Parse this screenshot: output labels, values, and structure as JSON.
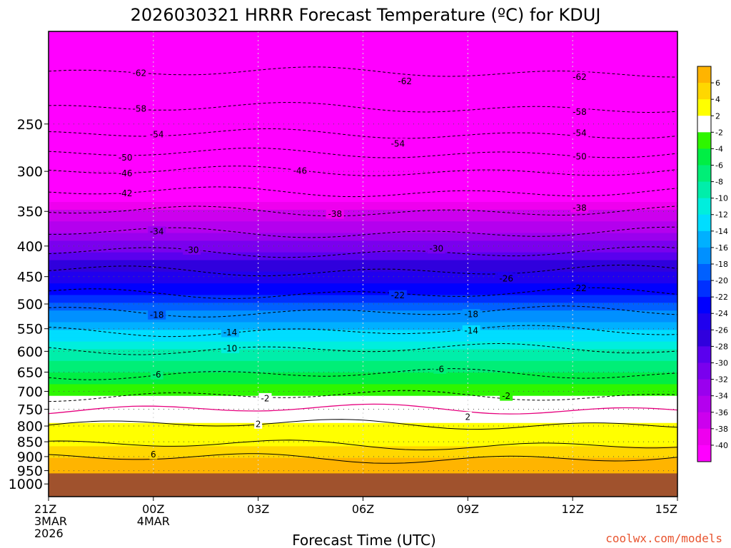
{
  "chart_data": {
    "type": "heatmap",
    "title": "2026030321 HRRR Forecast Temperature (ºC) for KDUJ",
    "xlabel": "Forecast Time (UTC)",
    "ylabel": "",
    "watermark": "coolwx.com/models",
    "x_range_hours": [
      0,
      18
    ],
    "y_range_hpa": [
      175,
      1050
    ],
    "y_scale": "log",
    "x_ticks": [
      {
        "hour": 0,
        "lines": [
          "21Z",
          "3MAR",
          "2026"
        ]
      },
      {
        "hour": 3,
        "lines": [
          "00Z",
          "4MAR"
        ]
      },
      {
        "hour": 6,
        "lines": [
          "03Z"
        ]
      },
      {
        "hour": 9,
        "lines": [
          "06Z"
        ]
      },
      {
        "hour": 12,
        "lines": [
          "09Z"
        ]
      },
      {
        "hour": 15,
        "lines": [
          "12Z"
        ]
      },
      {
        "hour": 18,
        "lines": [
          "15Z"
        ]
      }
    ],
    "y_ticks": [
      {
        "value": 250,
        "label": "250"
      },
      {
        "value": 300,
        "label": "300"
      },
      {
        "value": 350,
        "label": "350"
      },
      {
        "value": 400,
        "label": "400"
      },
      {
        "value": 450,
        "label": "450"
      },
      {
        "value": 500,
        "label": "500"
      },
      {
        "value": 550,
        "label": "550"
      },
      {
        "value": 600,
        "label": "600"
      },
      {
        "value": 650,
        "label": "650"
      },
      {
        "value": 700,
        "label": "700"
      },
      {
        "value": 750,
        "label": "750"
      },
      {
        "value": 800,
        "label": "800"
      },
      {
        "value": 850,
        "label": "850"
      },
      {
        "value": 900,
        "label": "900"
      },
      {
        "value": 950,
        "label": "950"
      },
      {
        "value": 1000,
        "label": "1000"
      }
    ],
    "grid": {
      "vertical_dotted": true,
      "horizontal_dotted": true
    },
    "surface_pressure_hpa": 960,
    "surface_color": "#a0522d",
    "temperature_profile": [
      {
        "hpa": 175,
        "temp": -66
      },
      {
        "hpa": 205,
        "temp": -62
      },
      {
        "hpa": 235,
        "temp": -58
      },
      {
        "hpa": 260,
        "temp": -54
      },
      {
        "hpa": 280,
        "temp": -50
      },
      {
        "hpa": 300,
        "temp": -46
      },
      {
        "hpa": 325,
        "temp": -42
      },
      {
        "hpa": 350,
        "temp": -38
      },
      {
        "hpa": 380,
        "temp": -34
      },
      {
        "hpa": 410,
        "temp": -30
      },
      {
        "hpa": 440,
        "temp": -26
      },
      {
        "hpa": 480,
        "temp": -22
      },
      {
        "hpa": 515,
        "temp": -18
      },
      {
        "hpa": 555,
        "temp": -14
      },
      {
        "hpa": 595,
        "temp": -10
      },
      {
        "hpa": 655,
        "temp": -6
      },
      {
        "hpa": 712,
        "temp": -2
      },
      {
        "hpa": 750,
        "temp": 0
      },
      {
        "hpa": 795,
        "temp": 2
      },
      {
        "hpa": 860,
        "temp": 4
      },
      {
        "hpa": 905,
        "temp": 6
      },
      {
        "hpa": 960,
        "temp": 7
      }
    ],
    "colorbar": {
      "levels": [
        {
          "label": "6",
          "color": "#ffb400"
        },
        {
          "label": "4",
          "color": "#ffd700"
        },
        {
          "label": "2",
          "color": "#ffff00"
        },
        {
          "label": "-2",
          "color": "#ffffff"
        },
        {
          "label": "-4",
          "color": "#2ef600"
        },
        {
          "label": "-6",
          "color": "#00ee44"
        },
        {
          "label": "-8",
          "color": "#00ee77"
        },
        {
          "label": "-10",
          "color": "#00eeaa"
        },
        {
          "label": "-12",
          "color": "#00eedd"
        },
        {
          "label": "-14",
          "color": "#00ddff"
        },
        {
          "label": "-16",
          "color": "#00b0ff"
        },
        {
          "label": "-18",
          "color": "#0090ff"
        },
        {
          "label": "-20",
          "color": "#0060ff"
        },
        {
          "label": "-22",
          "color": "#0030ff"
        },
        {
          "label": "-24",
          "color": "#0000ff"
        },
        {
          "label": "-26",
          "color": "#2000ee"
        },
        {
          "label": "-28",
          "color": "#3000dd"
        },
        {
          "label": "-30",
          "color": "#5a00ee"
        },
        {
          "label": "-32",
          "color": "#7a00ee"
        },
        {
          "label": "-34",
          "color": "#9a00ee"
        },
        {
          "label": "-36",
          "color": "#b400ee"
        },
        {
          "label": "-38",
          "color": "#cc00ee"
        },
        {
          "label": "-40",
          "color": "#ee00ee"
        },
        {
          "label": "",
          "color": "#ff00ff"
        }
      ]
    },
    "contour_labels": [
      {
        "text": "-62",
        "hour": 2.6,
        "hpa": 205
      },
      {
        "text": "-62",
        "hour": 10.2,
        "hpa": 210
      },
      {
        "text": "-62",
        "hour": 15.2,
        "hpa": 209
      },
      {
        "text": "-58",
        "hour": 2.6,
        "hpa": 234
      },
      {
        "text": "-58",
        "hour": 15.2,
        "hpa": 238
      },
      {
        "text": "-54",
        "hour": 3.1,
        "hpa": 258
      },
      {
        "text": "-54",
        "hour": 10.0,
        "hpa": 265
      },
      {
        "text": "-54",
        "hour": 15.2,
        "hpa": 257
      },
      {
        "text": "-50",
        "hour": 2.2,
        "hpa": 282
      },
      {
        "text": "-50",
        "hour": 15.2,
        "hpa": 280
      },
      {
        "text": "-46",
        "hour": 2.2,
        "hpa": 300
      },
      {
        "text": "-46",
        "hour": 7.2,
        "hpa": 300
      },
      {
        "text": "-42",
        "hour": 2.2,
        "hpa": 325
      },
      {
        "text": "-38",
        "hour": 8.2,
        "hpa": 347
      },
      {
        "text": "-38",
        "hour": 15.2,
        "hpa": 340
      },
      {
        "text": "-34",
        "hour": 3.1,
        "hpa": 385
      },
      {
        "text": "-30",
        "hour": 4.1,
        "hpa": 410
      },
      {
        "text": "-30",
        "hour": 11.1,
        "hpa": 405
      },
      {
        "text": "-26",
        "hour": 13.1,
        "hpa": 448
      },
      {
        "text": "-22",
        "hour": 10.0,
        "hpa": 483
      },
      {
        "text": "-22",
        "hour": 15.2,
        "hpa": 480
      },
      {
        "text": "-18",
        "hour": 3.1,
        "hpa": 515
      },
      {
        "text": "-18",
        "hour": 12.1,
        "hpa": 518
      },
      {
        "text": "-14",
        "hour": 5.2,
        "hpa": 553
      },
      {
        "text": "-14",
        "hour": 12.1,
        "hpa": 558
      },
      {
        "text": "-10",
        "hour": 5.2,
        "hpa": 595
      },
      {
        "text": "-6",
        "hour": 3.1,
        "hpa": 652
      },
      {
        "text": "-6",
        "hour": 11.2,
        "hpa": 655
      },
      {
        "text": "-2",
        "hour": 6.2,
        "hpa": 714
      },
      {
        "text": "-2",
        "hour": 13.1,
        "hpa": 705
      },
      {
        "text": "2",
        "hour": 6.0,
        "hpa": 792
      },
      {
        "text": "2",
        "hour": 12.0,
        "hpa": 762
      },
      {
        "text": "6",
        "hour": 3.0,
        "hpa": 887
      }
    ]
  }
}
